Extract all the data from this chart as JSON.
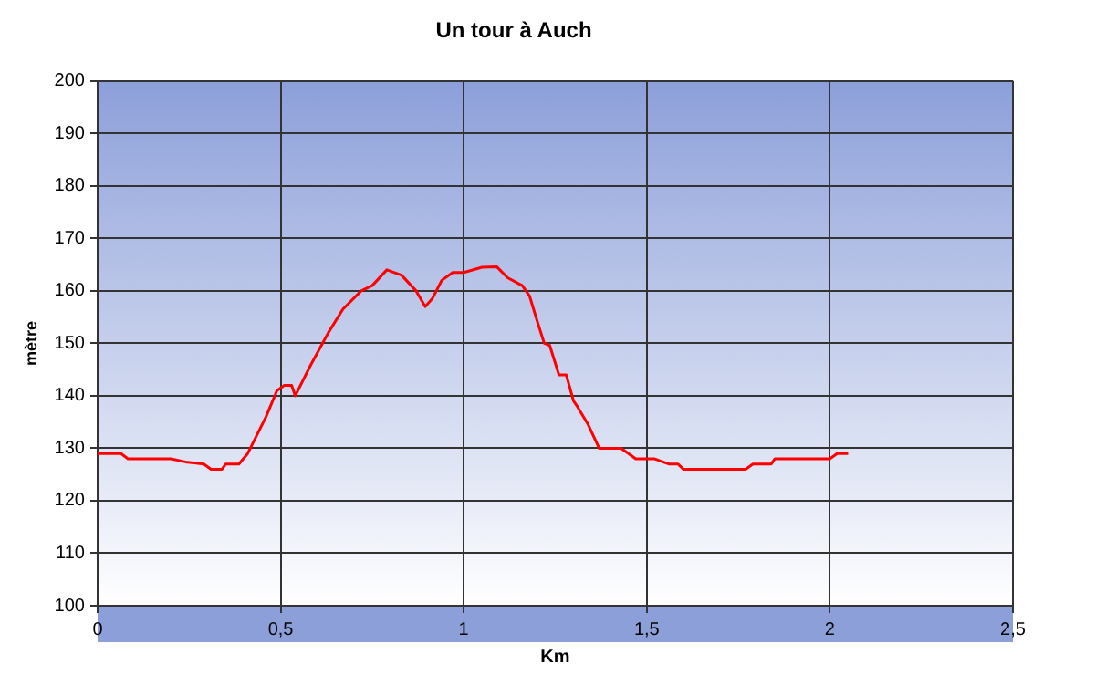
{
  "chart_data": {
    "type": "line",
    "title": "Un tour à Auch",
    "xlabel": "Km",
    "ylabel": "mètre",
    "x": [
      0,
      0.064,
      0.083,
      0.2,
      0.24,
      0.29,
      0.31,
      0.34,
      0.35,
      0.386,
      0.41,
      0.46,
      0.49,
      0.51,
      0.53,
      0.54,
      0.58,
      0.63,
      0.67,
      0.72,
      0.75,
      0.79,
      0.83,
      0.87,
      0.895,
      0.915,
      0.94,
      0.97,
      1.0,
      1.05,
      1.09,
      1.12,
      1.16,
      1.18,
      1.2,
      1.22,
      1.235,
      1.26,
      1.28,
      1.3,
      1.31,
      1.34,
      1.37,
      1.43,
      1.45,
      1.47,
      1.52,
      1.56,
      1.585,
      1.6,
      1.77,
      1.79,
      1.84,
      1.85,
      2.0,
      2.02,
      2.05
    ],
    "series": [
      {
        "color": "#ff0000",
        "values": [
          129,
          129,
          128,
          128,
          127.4,
          127,
          126,
          126,
          127,
          127,
          129,
          136,
          141,
          142,
          142,
          140,
          145.6,
          152,
          156.5,
          160,
          161,
          164,
          163,
          160,
          157,
          158.6,
          162,
          163.5,
          163.5,
          164.5,
          164.6,
          162.5,
          161,
          159,
          154.4,
          150,
          149.6,
          144,
          144,
          139,
          138,
          134.5,
          130,
          130,
          129,
          128,
          128,
          127,
          127,
          126,
          126,
          127,
          127,
          128,
          128,
          129,
          129
        ]
      }
    ],
    "xlim": [
      0,
      2.5
    ],
    "xticks": [
      0,
      {
        "value": 0.5,
        "label": "0,5"
      },
      1,
      {
        "value": 1.5,
        "label": "1,5"
      },
      2,
      {
        "value": 2.5,
        "label": "2,5"
      }
    ],
    "ylim": [
      100,
      200
    ],
    "yticks": [
      100,
      110,
      120,
      130,
      140,
      150,
      160,
      170,
      180,
      190,
      200
    ],
    "grid": true,
    "legend": false,
    "marker": "none",
    "line_style": "solid"
  }
}
